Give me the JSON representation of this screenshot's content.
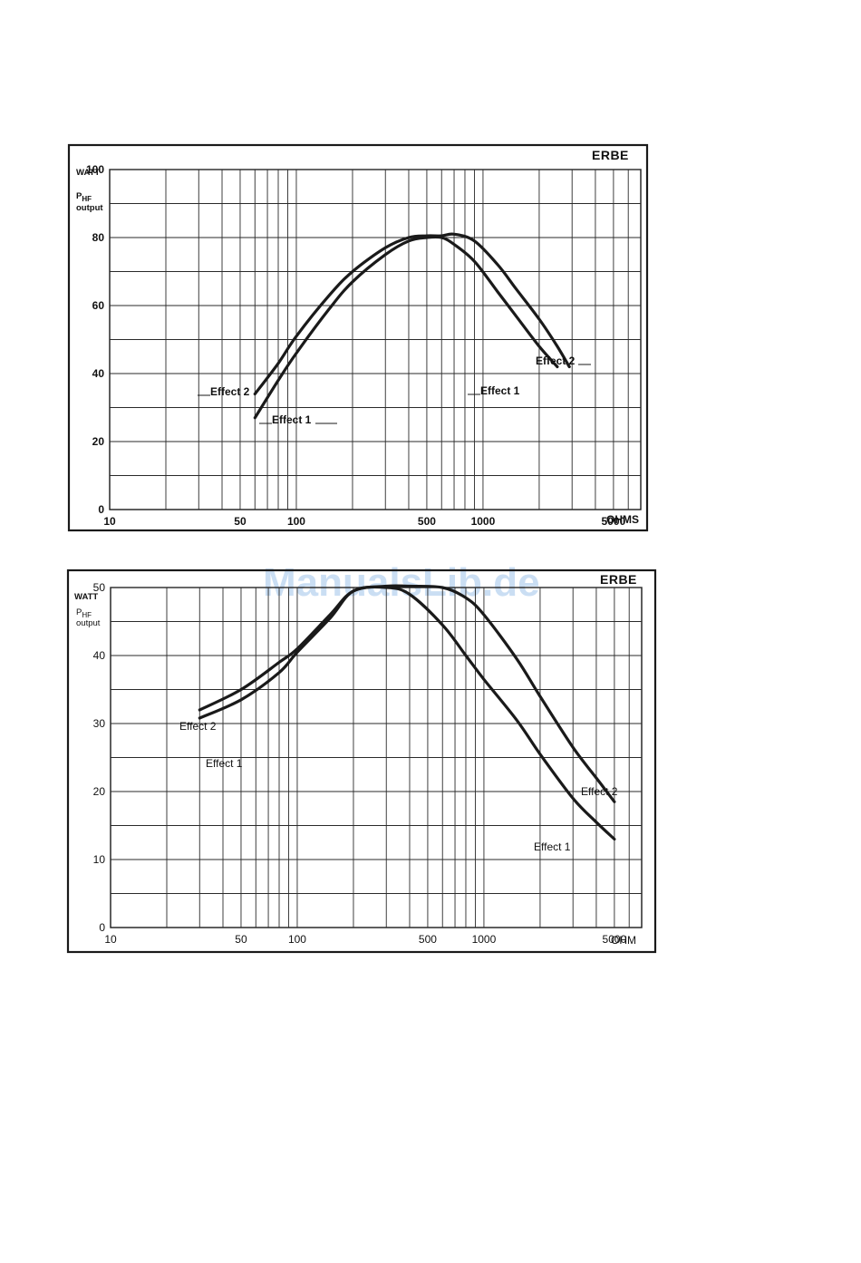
{
  "watermark": "ManualsLib.de",
  "chart_data": [
    {
      "type": "line",
      "brand": "ERBE",
      "ylabel": "WATT",
      "ylabel_line2_main": "P",
      "ylabel_line2_sub": "HF",
      "ylabel_line3": "output",
      "xlabel": "OHMS",
      "x_scale": "log",
      "xlim": [
        10,
        7000
      ],
      "ylim": [
        0,
        100
      ],
      "y_ticks": [
        "0",
        "20",
        "40",
        "60",
        "80",
        "100"
      ],
      "y_tick_values": [
        0,
        20,
        40,
        60,
        80,
        100
      ],
      "x_ticks": [
        "10",
        "50",
        "100",
        "500",
        "1000",
        "5000"
      ],
      "x_tick_values": [
        10,
        50,
        100,
        500,
        1000,
        5000
      ],
      "series": [
        {
          "name": "Effect 1",
          "points": [
            [
              60,
              27
            ],
            [
              80,
              38
            ],
            [
              100,
              46
            ],
            [
              150,
              59
            ],
            [
              200,
              67
            ],
            [
              300,
              75
            ],
            [
              400,
              79
            ],
            [
              500,
              80
            ],
            [
              600,
              80
            ],
            [
              700,
              78
            ],
            [
              900,
              73
            ],
            [
              1200,
              64
            ],
            [
              1500,
              57
            ],
            [
              2000,
              48
            ],
            [
              2500,
              42
            ]
          ]
        },
        {
          "name": "Effect 2",
          "points": [
            [
              60,
              34
            ],
            [
              80,
              43
            ],
            [
              100,
              51
            ],
            [
              150,
              63
            ],
            [
              200,
              70
            ],
            [
              300,
              77
            ],
            [
              400,
              80
            ],
            [
              500,
              80.5
            ],
            [
              600,
              80.5
            ],
            [
              700,
              81
            ],
            [
              900,
              79
            ],
            [
              1200,
              72
            ],
            [
              1500,
              65
            ],
            [
              2000,
              56
            ],
            [
              2500,
              48
            ],
            [
              2900,
              42
            ]
          ]
        }
      ]
    },
    {
      "type": "line",
      "brand": "ERBE",
      "ylabel": "WATT",
      "ylabel_line2_main": "P",
      "ylabel_line2_sub": "HF",
      "ylabel_line3": "output",
      "xlabel": "OHM",
      "x_scale": "log",
      "xlim": [
        10,
        7000
      ],
      "ylim": [
        0,
        50
      ],
      "y_ticks": [
        "0",
        "10",
        "20",
        "30",
        "40",
        "50"
      ],
      "y_tick_values": [
        0,
        10,
        20,
        30,
        40,
        50
      ],
      "x_ticks": [
        "10",
        "50",
        "100",
        "500",
        "1000",
        "5000"
      ],
      "x_tick_values": [
        10,
        50,
        100,
        500,
        1000,
        5000
      ],
      "series": [
        {
          "name": "Effect 1",
          "points": [
            [
              30,
              30.8
            ],
            [
              50,
              33.5
            ],
            [
              80,
              37.5
            ],
            [
              100,
              40.5
            ],
            [
              150,
              45.5
            ],
            [
              200,
              49.5
            ],
            [
              300,
              50
            ],
            [
              400,
              49
            ],
            [
              600,
              44.5
            ],
            [
              800,
              40
            ],
            [
              1000,
              36.5
            ],
            [
              1500,
              30.5
            ],
            [
              2000,
              25.5
            ],
            [
              3000,
              19
            ],
            [
              4000,
              15.5
            ],
            [
              5000,
              13
            ]
          ]
        },
        {
          "name": "Effect 2",
          "points": [
            [
              30,
              32
            ],
            [
              50,
              35
            ],
            [
              80,
              39
            ],
            [
              100,
              41
            ],
            [
              150,
              46
            ],
            [
              200,
              49.5
            ],
            [
              300,
              50.2
            ],
            [
              400,
              50.2
            ],
            [
              600,
              50
            ],
            [
              800,
              48.5
            ],
            [
              1000,
              46
            ],
            [
              1500,
              39.5
            ],
            [
              2000,
              34
            ],
            [
              3000,
              26.5
            ],
            [
              4000,
              22
            ],
            [
              5000,
              18.5
            ]
          ]
        }
      ]
    }
  ]
}
